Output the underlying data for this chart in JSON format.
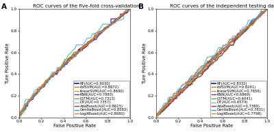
{
  "title_A": "ROC curves of the five-fold cross-validation",
  "title_B": "ROC curves of the independent testing dataset",
  "label_A": "A",
  "label_B": "B",
  "xlabel": "False Positive Rate",
  "ylabel": "Ture Positive Rate",
  "panel_A": {
    "RF": {
      "auc": 0.903,
      "color": "#1530a0",
      "lw": 1.3
    },
    "rbfSVM": {
      "auc": 0.8872,
      "color": "#c87030",
      "lw": 1.0
    },
    "linearSVM": {
      "auc": 0.869,
      "color": "#c8a020",
      "lw": 1.0
    },
    "KNN": {
      "auc": 0.7883,
      "color": "#7030a0",
      "lw": 1.0
    },
    "LSTM": {
      "auc": 0.7313,
      "color": "#70a030",
      "lw": 1.0
    },
    "DT": {
      "auc": 0.7357,
      "color": "#70c0e0",
      "lw": 1.0
    },
    "AdaBoost": {
      "auc": 0.8615,
      "color": "#b03030",
      "lw": 1.0
    },
    "GentleBoost": {
      "auc": 0.8582,
      "color": "#4090d0",
      "lw": 1.0
    },
    "LogitBoost": {
      "auc": 0.868,
      "color": "#e08030",
      "lw": 1.0
    }
  },
  "panel_B": {
    "RF": {
      "auc": 0.8332,
      "color": "#1530a0",
      "lw": 1.3
    },
    "rbfSVM": {
      "auc": 0.8241,
      "color": "#c87030",
      "lw": 1.0
    },
    "linearSVM": {
      "auc": 0.7656,
      "color": "#c8a020",
      "lw": 1.0
    },
    "KNN": {
      "auc": 0.6869,
      "color": "#7030a0",
      "lw": 1.0
    },
    "LSTM": {
      "auc": 0.6041,
      "color": "#70a030",
      "lw": 1.0
    },
    "DT": {
      "auc": 0.6574,
      "color": "#70c0e0",
      "lw": 1.0
    },
    "AdaBoost": {
      "auc": 0.7389,
      "color": "#b03030",
      "lw": 1.0
    },
    "GentleBoost": {
      "auc": 0.7831,
      "color": "#4090d0",
      "lw": 1.0
    },
    "LogitBoost": {
      "auc": 0.7798,
      "color": "#e08030",
      "lw": 1.0
    }
  },
  "bg_color": "#ffffff",
  "font_size_title": 5.2,
  "font_size_legend": 3.8,
  "font_size_axis": 4.8,
  "font_size_tick": 4.2,
  "font_size_label": 7.5
}
